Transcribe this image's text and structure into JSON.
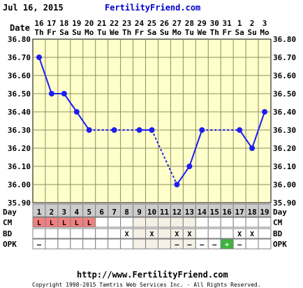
{
  "header": {
    "date": "Jul 16, 2015",
    "site": "FertilityFriend.com"
  },
  "footer": {
    "url": "http://www.FertilityFriend.com",
    "copyright": "Copyright 1998-2015 Tamtris Web Services Inc. - All Rights Reserved."
  },
  "row_labels": {
    "date": "Date",
    "day": "Day",
    "cm": "CM",
    "bd": "BD",
    "opk": "OPK"
  },
  "colors": {
    "panel": "#ffffcc",
    "grid": "#8c8c5c",
    "line": "#1e1ef0",
    "title": "#0000cc",
    "cm_fill": "#f08080",
    "opk_fill": "#3cb43c",
    "header_bg": "#cccccc"
  },
  "chart_data": {
    "type": "line",
    "dates": [
      "16",
      "17",
      "18",
      "19",
      "20",
      "21",
      "22",
      "23",
      "24",
      "25",
      "26",
      "27",
      "28",
      "29",
      "30",
      "31",
      "1",
      "2",
      "3"
    ],
    "weekdays": [
      "Th",
      "Fr",
      "Sa",
      "Su",
      "Mo",
      "Tu",
      "We",
      "Th",
      "Fr",
      "Sa",
      "Su",
      "Mo",
      "Tu",
      "We",
      "Th",
      "Fr",
      "Sa",
      "Su",
      "Mo"
    ],
    "cycle_days": [
      "1",
      "2",
      "3",
      "4",
      "5",
      "6",
      "7",
      "8",
      "9",
      "10",
      "11",
      "12",
      "13",
      "14",
      "15",
      "16",
      "17",
      "18",
      "19"
    ],
    "y_ticks": [
      "36.80",
      "36.70",
      "36.60",
      "36.50",
      "36.40",
      "36.30",
      "36.20",
      "36.10",
      "36.00",
      "35.90"
    ],
    "ylim": [
      35.9,
      36.8
    ],
    "temps": [
      36.7,
      36.5,
      36.5,
      36.4,
      36.3,
      null,
      36.3,
      null,
      36.3,
      36.3,
      null,
      36.0,
      36.1,
      36.3,
      null,
      null,
      36.3,
      36.2,
      36.4
    ],
    "cm": [
      "L",
      "L",
      "L",
      "L",
      "L",
      "",
      "",
      "",
      "",
      "",
      "",
      "",
      "",
      "",
      "",
      "",
      "",
      "",
      ""
    ],
    "bd": [
      "",
      "",
      "",
      "",
      "",
      "",
      "",
      "X",
      "",
      "X",
      "",
      "X",
      "X",
      "",
      "",
      "",
      "X",
      "X",
      ""
    ],
    "opk": [
      "–",
      "",
      "",
      "",
      "",
      "",
      "",
      "",
      "",
      "",
      "",
      "–",
      "–",
      "–",
      "–",
      "+",
      "–",
      "",
      ""
    ]
  }
}
